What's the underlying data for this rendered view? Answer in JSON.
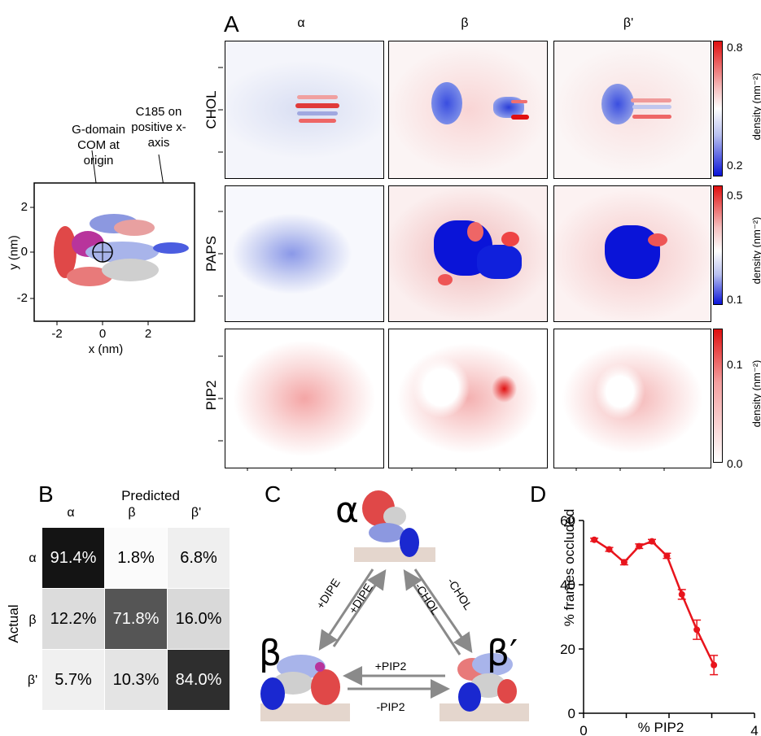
{
  "panel_labels": {
    "A": "A",
    "B": "B",
    "C": "C",
    "D": "D"
  },
  "inset": {
    "label_com": "G-domain COM at origin",
    "label_c185": "C185 on positive x-axis",
    "xlabel": "x (nm)",
    "ylabel": "y (nm)",
    "xticks": [
      "-2",
      "0",
      "2"
    ],
    "yticks": [
      "2",
      "0",
      "-2"
    ]
  },
  "panelA": {
    "columns": [
      "α",
      "β",
      "β'"
    ],
    "rows": [
      "CHOL",
      "PAPS",
      "PIP2"
    ],
    "colorbars": [
      {
        "top": "0.8",
        "bottom": "0.2",
        "label": "density (nm⁻²)"
      },
      {
        "top": "0.5",
        "bottom": "0.1",
        "label": "density (nm⁻²)"
      },
      {
        "top": "0.1",
        "bottom": "0.0",
        "label": "density (nm⁻²)"
      }
    ],
    "colors": {
      "low": "#0a14d8",
      "mid": "#ffffff",
      "high": "#e01010"
    }
  },
  "panelB": {
    "title": "Predicted",
    "actual_label": "Actual",
    "col_headers": [
      "α",
      "β",
      "β'"
    ],
    "row_headers": [
      "α",
      "β",
      "β'"
    ],
    "cells": [
      [
        "91.4%",
        "1.8%",
        "6.8%"
      ],
      [
        "12.2%",
        "71.8%",
        "16.0%"
      ],
      [
        "5.7%",
        "10.3%",
        "84.0%"
      ]
    ]
  },
  "panelC": {
    "states": {
      "alpha": "α",
      "beta": "β",
      "betap": "β′"
    },
    "arrows": {
      "left_out": "+DIPE",
      "left_in": "+DIPE",
      "right_in": "-CHOL",
      "right_out": "-CHOL",
      "bottom_top": "+PIP2",
      "bottom_bottom": "-PIP2"
    }
  },
  "chart_data": {
    "type": "line",
    "title": "",
    "xlabel": "% PIP2",
    "ylabel": "% frames occluded",
    "xlim": [
      0,
      4
    ],
    "ylim": [
      0,
      60
    ],
    "xticks": [
      "0",
      "4"
    ],
    "yticks": [
      "60",
      "40",
      "20",
      "0"
    ],
    "color": "#e8141c",
    "x": [
      0.25,
      0.6,
      0.95,
      1.3,
      1.6,
      1.95,
      2.3,
      2.65,
      3.05
    ],
    "y": [
      54,
      51,
      47,
      52,
      53.5,
      49,
      37,
      26,
      15
    ],
    "err": [
      0.5,
      0.6,
      0.8,
      0.7,
      0.6,
      0.8,
      1.5,
      3,
      3
    ]
  }
}
